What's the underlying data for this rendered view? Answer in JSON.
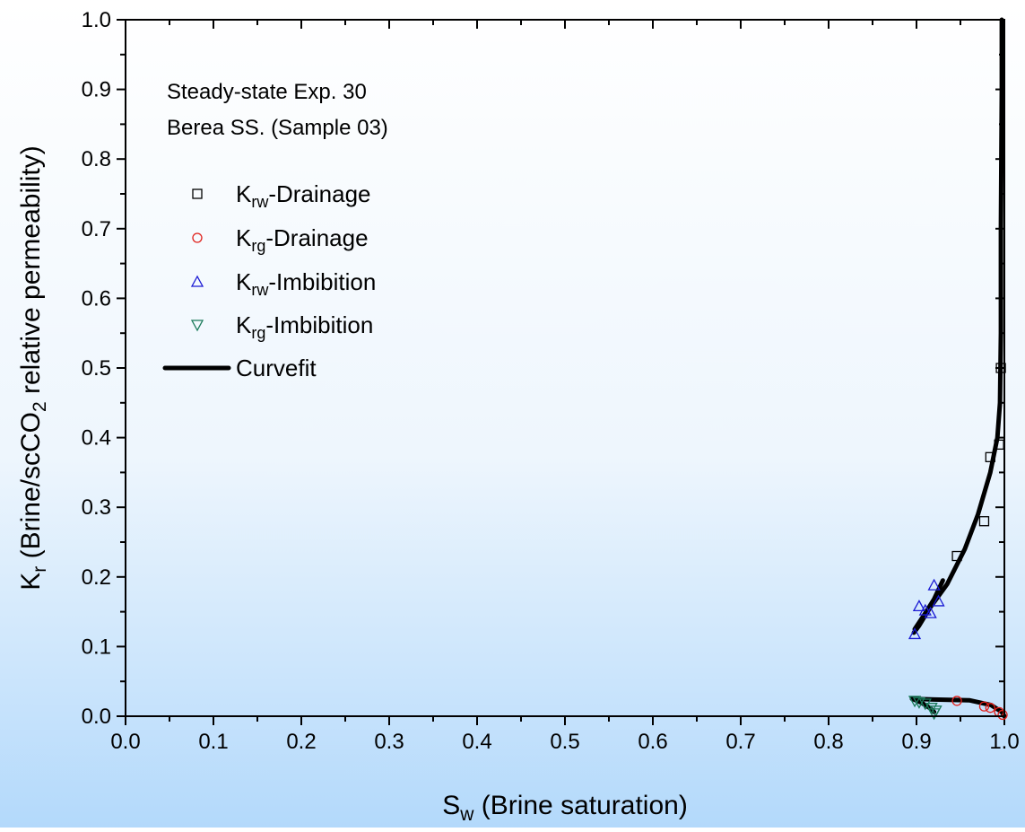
{
  "colors": {
    "background_top": "#ffffff",
    "background_bottom": "#b3d9fb",
    "axis": "#000000",
    "krw_drainage": "#000000",
    "krg_drainage": "#e0201b",
    "krw_imbibition": "#1a1ad4",
    "krg_imbibition": "#1a7a5a",
    "curvefit": "#000000"
  },
  "chart_data": {
    "type": "scatter",
    "xlabel": {
      "main": "S",
      "sub": "w",
      "rest": " (Brine saturation)"
    },
    "ylabel": {
      "main": "K",
      "sub1": "r",
      "mid": " (Brine/scCO",
      "sub2": "2",
      "rest": " relative permeability)"
    },
    "xlim": [
      0.0,
      1.0
    ],
    "ylim": [
      0.0,
      1.0
    ],
    "x_ticks": [
      "0.0",
      "0.1",
      "0.2",
      "0.3",
      "0.4",
      "0.5",
      "0.6",
      "0.7",
      "0.8",
      "0.9",
      "1.0"
    ],
    "y_ticks": [
      "0.0",
      "0.1",
      "0.2",
      "0.3",
      "0.4",
      "0.5",
      "0.6",
      "0.7",
      "0.8",
      "0.9",
      "1.0"
    ],
    "grid": false,
    "annotations": [
      "Steady-state Exp. 30",
      "Berea SS. (Sample 03)"
    ],
    "legend_position": "top-left",
    "series": [
      {
        "name": "K_rw-Drainage",
        "label": {
          "main": "K",
          "sub": "rw",
          "rest": "-Drainage"
        },
        "marker": "square",
        "color": "#000000",
        "points": [
          [
            0.996,
            0.5
          ],
          [
            0.994,
            0.39
          ],
          [
            0.984,
            0.372
          ],
          [
            0.977,
            0.28
          ],
          [
            0.946,
            0.23
          ]
        ]
      },
      {
        "name": "K_rg-Drainage",
        "label": {
          "main": "K",
          "sub": "rg",
          "rest": "-Drainage"
        },
        "marker": "circle",
        "color": "#e0201b",
        "points": [
          [
            0.946,
            0.022
          ],
          [
            0.977,
            0.014
          ],
          [
            0.984,
            0.012
          ],
          [
            0.994,
            0.006
          ],
          [
            0.998,
            0.002
          ]
        ]
      },
      {
        "name": "K_rw-Imbibition",
        "label": {
          "main": "K",
          "sub": "rw",
          "rest": "-Imbibition"
        },
        "marker": "triangle-up",
        "color": "#1a1ad4",
        "points": [
          [
            0.898,
            0.118
          ],
          [
            0.903,
            0.158
          ],
          [
            0.91,
            0.152
          ],
          [
            0.92,
            0.188
          ],
          [
            0.925,
            0.165
          ],
          [
            0.916,
            0.148
          ]
        ]
      },
      {
        "name": "K_rg-Imbibition",
        "label": {
          "main": "K",
          "sub": "rg",
          "rest": "-Imbibition"
        },
        "marker": "triangle-down",
        "color": "#1a7a5a",
        "points": [
          [
            0.898,
            0.022
          ],
          [
            0.903,
            0.02
          ],
          [
            0.91,
            0.018
          ],
          [
            0.917,
            0.012
          ],
          [
            0.92,
            0.004
          ],
          [
            0.922,
            0.008
          ]
        ]
      },
      {
        "name": "Curvefit",
        "label": {
          "main": "Curvefit",
          "sub": "",
          "rest": ""
        },
        "marker": "line",
        "color": "#000000",
        "curves": [
          [
            [
              0.997,
              1.0
            ],
            [
              0.997,
              0.9
            ],
            [
              0.996,
              0.7
            ],
            [
              0.996,
              0.55
            ],
            [
              0.995,
              0.45
            ],
            [
              0.992,
              0.4
            ],
            [
              0.984,
              0.35
            ],
            [
              0.97,
              0.29
            ],
            [
              0.955,
              0.24
            ],
            [
              0.935,
              0.19
            ],
            [
              0.915,
              0.155
            ],
            [
              0.903,
              0.13
            ],
            [
              0.897,
              0.12
            ]
          ],
          [
            [
              0.898,
              0.125
            ],
            [
              0.91,
              0.148
            ],
            [
              0.92,
              0.168
            ],
            [
              0.93,
              0.195
            ]
          ],
          [
            [
              0.895,
              0.025
            ],
            [
              0.92,
              0.024
            ],
            [
              0.96,
              0.023
            ],
            [
              0.985,
              0.016
            ],
            [
              0.997,
              0.006
            ],
            [
              1.0,
              0.0
            ]
          ],
          [
            [
              0.895,
              0.025
            ],
            [
              0.905,
              0.02
            ],
            [
              0.915,
              0.012
            ],
            [
              0.92,
              0.006
            ]
          ]
        ]
      }
    ]
  }
}
